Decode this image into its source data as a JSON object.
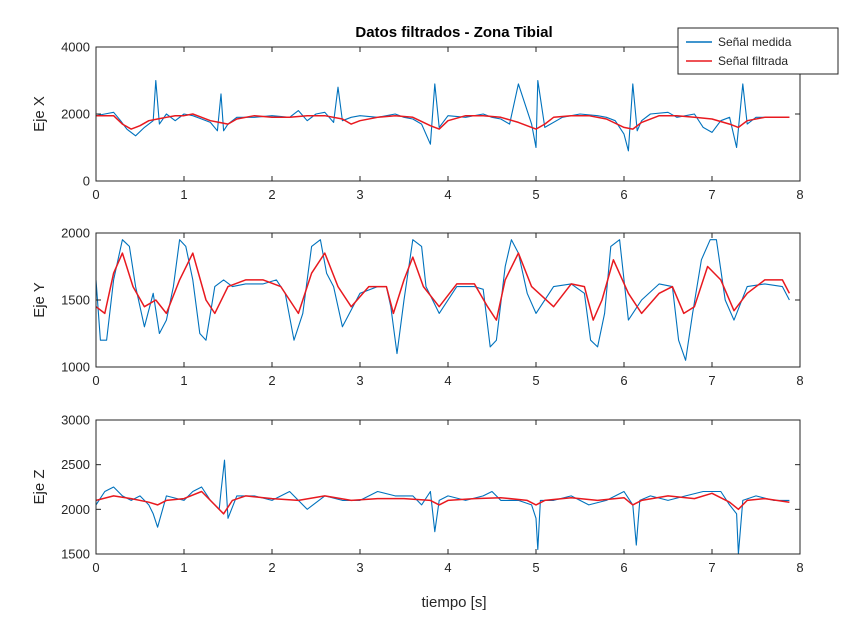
{
  "chart_data": {
    "type": "line",
    "title": "Datos filtrados - Zona Tibial",
    "xlabel": "tiempo [s]",
    "legend": {
      "placement": "top-right",
      "entries": [
        "Señal medida",
        "Señal filtrada"
      ]
    },
    "colors": {
      "medida": "#0072bd",
      "filtrada": "#e8191f"
    },
    "grid": false,
    "x_tick_labels": [
      "0",
      "1",
      "2",
      "3",
      "4",
      "5",
      "6",
      "7",
      "8"
    ],
    "subplots": [
      {
        "ylabel": "Eje X",
        "xlim": [
          0,
          8
        ],
        "ylim": [
          0,
          4000
        ],
        "y_tick_labels": [
          "0",
          "2000",
          "4000"
        ],
        "series": [
          {
            "name": "Señal medida",
            "x": [
              0,
              0.1,
              0.2,
              0.28,
              0.35,
              0.45,
              0.55,
              0.65,
              0.68,
              0.72,
              0.8,
              0.9,
              1.0,
              1.1,
              1.2,
              1.3,
              1.38,
              1.42,
              1.45,
              1.5,
              1.6,
              1.8,
              2.0,
              2.2,
              2.3,
              2.4,
              2.5,
              2.6,
              2.7,
              2.75,
              2.8,
              2.9,
              3.0,
              3.2,
              3.4,
              3.5,
              3.6,
              3.7,
              3.8,
              3.85,
              3.9,
              4.0,
              4.2,
              4.4,
              4.5,
              4.6,
              4.7,
              4.8,
              4.95,
              5.0,
              5.02,
              5.1,
              5.3,
              5.5,
              5.7,
              5.8,
              5.9,
              6.0,
              6.05,
              6.1,
              6.15,
              6.2,
              6.3,
              6.5,
              6.6,
              6.7,
              6.8,
              6.9,
              7.0,
              7.1,
              7.2,
              7.28,
              7.35,
              7.4,
              7.5,
              7.7,
              7.88
            ],
            "y": [
              1950,
              2000,
              2050,
              1800,
              1550,
              1350,
              1600,
              1800,
              3000,
              1700,
              2000,
              1800,
              2000,
              1950,
              1850,
              1750,
              1500,
              2600,
              1500,
              1700,
              1900,
              1900,
              1950,
              1900,
              2100,
              1800,
              2000,
              2050,
              1750,
              2800,
              1800,
              1900,
              1950,
              1900,
              2000,
              1900,
              1850,
              1700,
              1100,
              2900,
              1600,
              1950,
              1900,
              2000,
              1900,
              1850,
              1700,
              2900,
              1700,
              1000,
              3000,
              1600,
              1900,
              2000,
              1950,
              1900,
              1800,
              1400,
              900,
              2900,
              1500,
              1800,
              2000,
              2050,
              1900,
              1950,
              2000,
              1600,
              1450,
              1800,
              1900,
              1000,
              2900,
              1700,
              1900,
              1900,
              1900
            ]
          },
          {
            "name": "Señal filtrada",
            "x": [
              0,
              0.1,
              0.2,
              0.3,
              0.4,
              0.5,
              0.6,
              0.7,
              0.8,
              0.9,
              1.0,
              1.1,
              1.2,
              1.3,
              1.4,
              1.5,
              1.6,
              1.8,
              2.0,
              2.2,
              2.4,
              2.6,
              2.8,
              2.9,
              3.0,
              3.2,
              3.4,
              3.6,
              3.8,
              3.9,
              4.0,
              4.2,
              4.4,
              4.6,
              4.8,
              5.0,
              5.1,
              5.2,
              5.4,
              5.6,
              5.8,
              6.0,
              6.1,
              6.2,
              6.4,
              6.6,
              6.8,
              7.0,
              7.2,
              7.3,
              7.4,
              7.6,
              7.88
            ],
            "y": [
              1950,
              1950,
              1950,
              1700,
              1550,
              1650,
              1800,
              1850,
              1900,
              1950,
              1950,
              2000,
              1900,
              1800,
              1750,
              1700,
              1850,
              1950,
              1900,
              1900,
              1950,
              1950,
              1850,
              1700,
              1800,
              1900,
              1950,
              1900,
              1650,
              1550,
              1800,
              1950,
              1950,
              1900,
              1750,
              1550,
              1700,
              1900,
              1950,
              1950,
              1850,
              1600,
              1550,
              1750,
              1950,
              1950,
              1900,
              1850,
              1700,
              1600,
              1800,
              1900,
              1900
            ]
          }
        ]
      },
      {
        "ylabel": "Eje Y",
        "xlim": [
          0,
          8
        ],
        "ylim": [
          1000,
          2000
        ],
        "y_tick_labels": [
          "1000",
          "1500",
          "2000"
        ],
        "series": [
          {
            "name": "Señal medida",
            "x": [
              0,
              0.05,
              0.12,
              0.2,
              0.3,
              0.38,
              0.45,
              0.55,
              0.65,
              0.72,
              0.8,
              0.88,
              0.95,
              1.02,
              1.1,
              1.18,
              1.25,
              1.35,
              1.45,
              1.55,
              1.7,
              1.9,
              2.05,
              2.15,
              2.25,
              2.35,
              2.45,
              2.55,
              2.62,
              2.7,
              2.8,
              3.0,
              3.2,
              3.3,
              3.35,
              3.42,
              3.5,
              3.6,
              3.7,
              3.75,
              3.9,
              4.1,
              4.3,
              4.4,
              4.48,
              4.55,
              4.65,
              4.72,
              4.8,
              4.9,
              5.0,
              5.2,
              5.4,
              5.55,
              5.62,
              5.7,
              5.78,
              5.85,
              5.95,
              6.05,
              6.2,
              6.4,
              6.55,
              6.62,
              6.7,
              6.78,
              6.88,
              6.98,
              7.05,
              7.15,
              7.25,
              7.4,
              7.6,
              7.8,
              7.88
            ],
            "y": [
              1650,
              1200,
              1200,
              1650,
              1950,
              1900,
              1600,
              1300,
              1550,
              1250,
              1350,
              1600,
              1950,
              1900,
              1650,
              1250,
              1200,
              1600,
              1650,
              1600,
              1620,
              1620,
              1650,
              1550,
              1200,
              1400,
              1900,
              1950,
              1700,
              1600,
              1300,
              1550,
              1600,
              1600,
              1450,
              1100,
              1500,
              1950,
              1900,
              1600,
              1400,
              1600,
              1600,
              1580,
              1150,
              1200,
              1750,
              1950,
              1850,
              1550,
              1400,
              1600,
              1620,
              1550,
              1200,
              1150,
              1400,
              1900,
              1950,
              1350,
              1500,
              1620,
              1600,
              1200,
              1050,
              1400,
              1800,
              1950,
              1950,
              1500,
              1350,
              1600,
              1620,
              1600,
              1500
            ]
          },
          {
            "name": "Señal filtrada",
            "x": [
              0,
              0.1,
              0.2,
              0.3,
              0.42,
              0.55,
              0.68,
              0.8,
              0.95,
              1.1,
              1.25,
              1.35,
              1.5,
              1.7,
              1.9,
              2.1,
              2.2,
              2.3,
              2.45,
              2.6,
              2.75,
              2.9,
              3.1,
              3.3,
              3.38,
              3.5,
              3.6,
              3.72,
              3.9,
              4.1,
              4.3,
              4.45,
              4.55,
              4.65,
              4.8,
              4.95,
              5.2,
              5.4,
              5.55,
              5.65,
              5.75,
              5.88,
              6.05,
              6.2,
              6.4,
              6.55,
              6.68,
              6.8,
              6.95,
              7.1,
              7.25,
              7.4,
              7.6,
              7.8,
              7.88
            ],
            "y": [
              1450,
              1400,
              1700,
              1850,
              1600,
              1450,
              1500,
              1400,
              1650,
              1850,
              1500,
              1400,
              1600,
              1650,
              1650,
              1600,
              1500,
              1400,
              1700,
              1850,
              1600,
              1450,
              1600,
              1600,
              1400,
              1650,
              1820,
              1600,
              1450,
              1620,
              1620,
              1450,
              1350,
              1650,
              1850,
              1600,
              1450,
              1620,
              1600,
              1350,
              1500,
              1800,
              1550,
              1400,
              1550,
              1600,
              1400,
              1450,
              1750,
              1650,
              1420,
              1550,
              1650,
              1650,
              1550
            ]
          }
        ]
      },
      {
        "ylabel": "Eje Z",
        "xlim": [
          0,
          8
        ],
        "ylim": [
          1500,
          3000
        ],
        "y_tick_labels": [
          "1500",
          "2000",
          "2500",
          "3000"
        ],
        "series": [
          {
            "name": "Señal medida",
            "x": [
              0,
              0.1,
              0.2,
              0.3,
              0.4,
              0.5,
              0.6,
              0.65,
              0.7,
              0.8,
              1.0,
              1.1,
              1.2,
              1.3,
              1.4,
              1.42,
              1.46,
              1.5,
              1.6,
              1.8,
              2.0,
              2.2,
              2.4,
              2.6,
              2.8,
              3.0,
              3.2,
              3.4,
              3.6,
              3.7,
              3.8,
              3.85,
              3.9,
              4.0,
              4.2,
              4.4,
              4.5,
              4.6,
              4.8,
              4.95,
              5.0,
              5.02,
              5.05,
              5.2,
              5.4,
              5.6,
              5.8,
              6.0,
              6.1,
              6.14,
              6.18,
              6.3,
              6.5,
              6.7,
              6.9,
              7.1,
              7.2,
              7.28,
              7.3,
              7.35,
              7.5,
              7.7,
              7.88
            ],
            "y": [
              2050,
              2200,
              2250,
              2150,
              2100,
              2150,
              2050,
              1950,
              1800,
              2150,
              2100,
              2200,
              2250,
              2100,
              2000,
              2200,
              2550,
              1900,
              2150,
              2150,
              2100,
              2200,
              2000,
              2150,
              2100,
              2100,
              2200,
              2150,
              2150,
              2050,
              2200,
              1750,
              2100,
              2150,
              2100,
              2150,
              2200,
              2100,
              2100,
              2050,
              1900,
              1550,
              2100,
              2100,
              2150,
              2050,
              2100,
              2200,
              2050,
              1600,
              2100,
              2150,
              2100,
              2150,
              2200,
              2200,
              2050,
              1950,
              1500,
              2100,
              2150,
              2100,
              2100
            ]
          },
          {
            "name": "Señal filtrada",
            "x": [
              0,
              0.2,
              0.4,
              0.6,
              0.7,
              0.8,
              1.0,
              1.2,
              1.35,
              1.45,
              1.55,
              1.7,
              2.0,
              2.3,
              2.6,
              2.9,
              3.2,
              3.5,
              3.8,
              3.9,
              4.0,
              4.3,
              4.6,
              4.9,
              5.0,
              5.1,
              5.4,
              5.7,
              6.0,
              6.1,
              6.2,
              6.5,
              6.8,
              7.0,
              7.2,
              7.3,
              7.4,
              7.6,
              7.88
            ],
            "y": [
              2100,
              2150,
              2120,
              2080,
              2050,
              2100,
              2120,
              2200,
              2050,
              1950,
              2100,
              2150,
              2120,
              2100,
              2150,
              2100,
              2120,
              2120,
              2100,
              2050,
              2100,
              2120,
              2130,
              2100,
              2050,
              2100,
              2130,
              2100,
              2130,
              2050,
              2100,
              2150,
              2120,
              2180,
              2080,
              2000,
              2100,
              2120,
              2080
            ]
          }
        ]
      }
    ]
  }
}
